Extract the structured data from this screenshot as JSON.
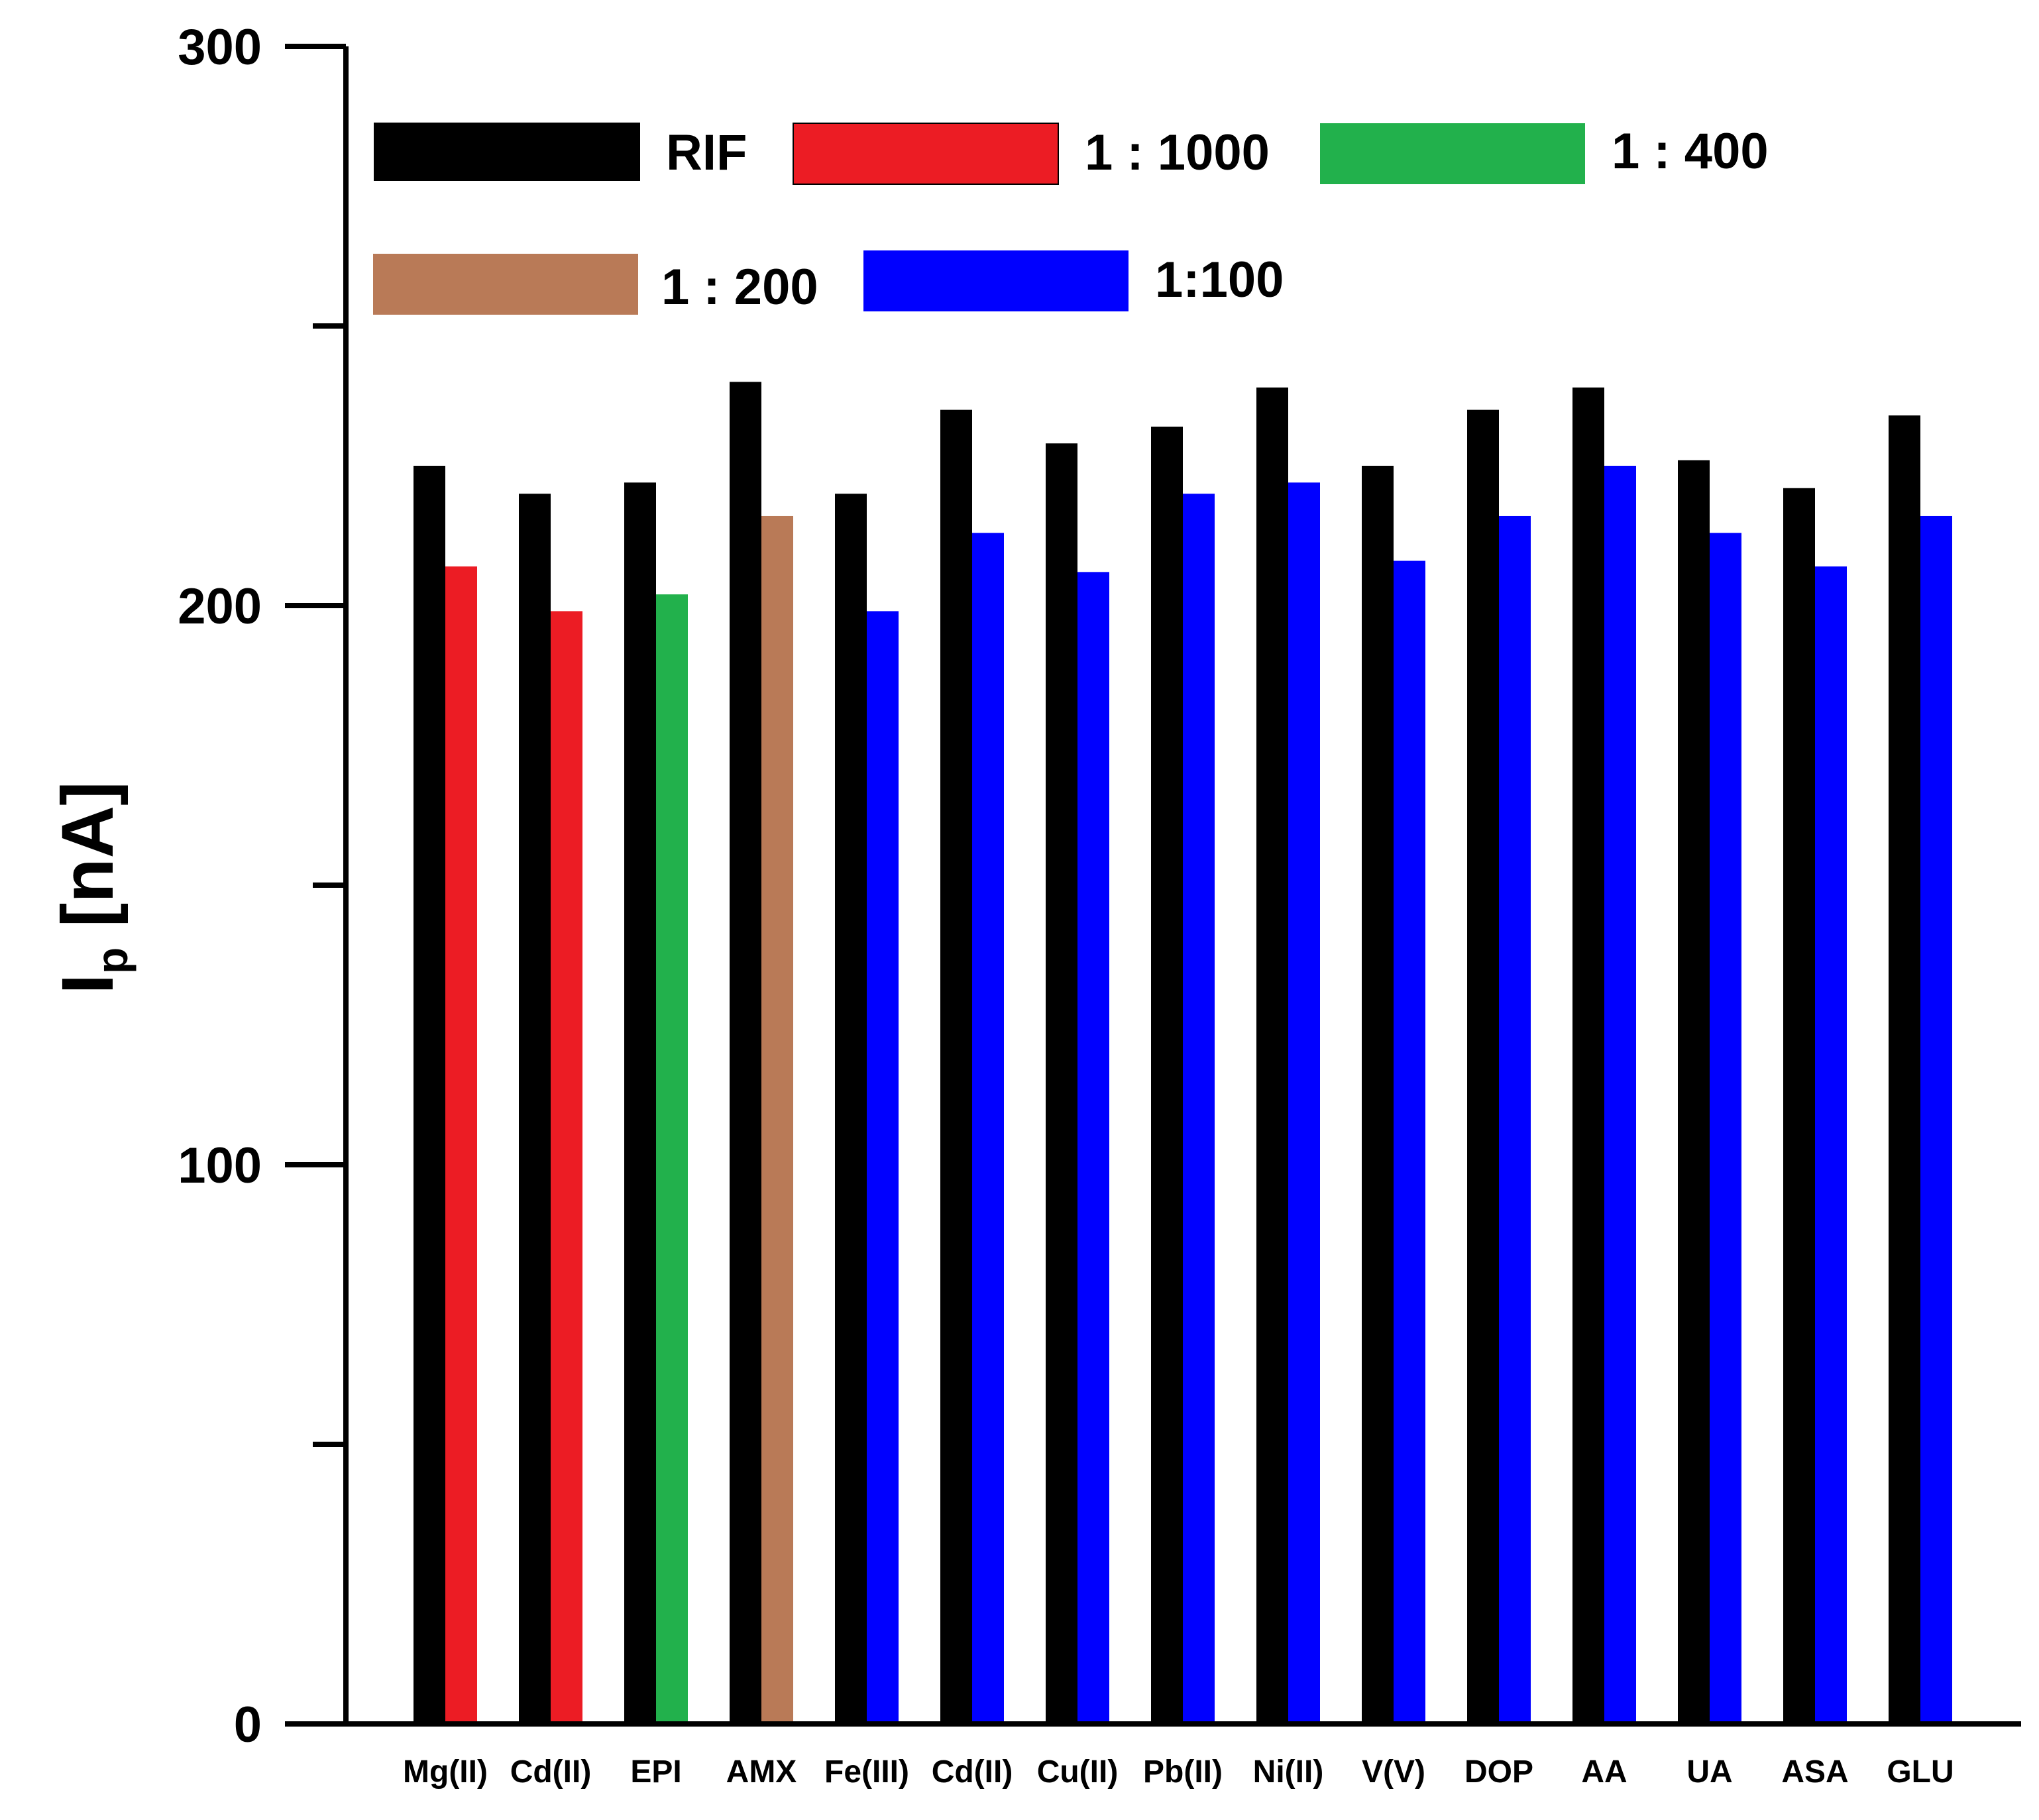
{
  "chart_data": {
    "type": "bar",
    "title": "",
    "xlabel": "",
    "ylabel": "I",
    "ylabel_subscript": "p",
    "ylabel_unit": " [nA]",
    "ylim": [
      0,
      300
    ],
    "yticks": [
      0,
      100,
      200,
      300
    ],
    "minor_ticks": [
      50,
      150,
      250
    ],
    "grid": false,
    "legend_position": "top",
    "categories": [
      "Mg(II)",
      "Cd(II)",
      "EPI",
      "AMX",
      "Fe(III)",
      "Cd(II)",
      "Cu(II)",
      "Pb(II)",
      "Ni(II)",
      "V(V)",
      "DOP",
      "AA",
      "UA",
      "ASA",
      "GLU"
    ],
    "rif": {
      "name": "RIF",
      "color": "#000000",
      "values": [
        225,
        220,
        222,
        240,
        220,
        235,
        229,
        232,
        239,
        225,
        235,
        239,
        226,
        221,
        234
      ]
    },
    "interferent": {
      "values": [
        207,
        199,
        202,
        216,
        199,
        213,
        206,
        220,
        222,
        208,
        216,
        225,
        213,
        207,
        216
      ],
      "groups": [
        0,
        0,
        1,
        2,
        3,
        3,
        3,
        3,
        3,
        3,
        3,
        3,
        3,
        3,
        3
      ]
    },
    "interferent_series": [
      {
        "name": "1 : 1000",
        "color": "#ec1c24"
      },
      {
        "name": "1 : 400",
        "color": "#22b14c"
      },
      {
        "name": "1 : 200",
        "color": "#b97a57"
      },
      {
        "name": "1:100",
        "color": "#0000ff"
      }
    ]
  }
}
